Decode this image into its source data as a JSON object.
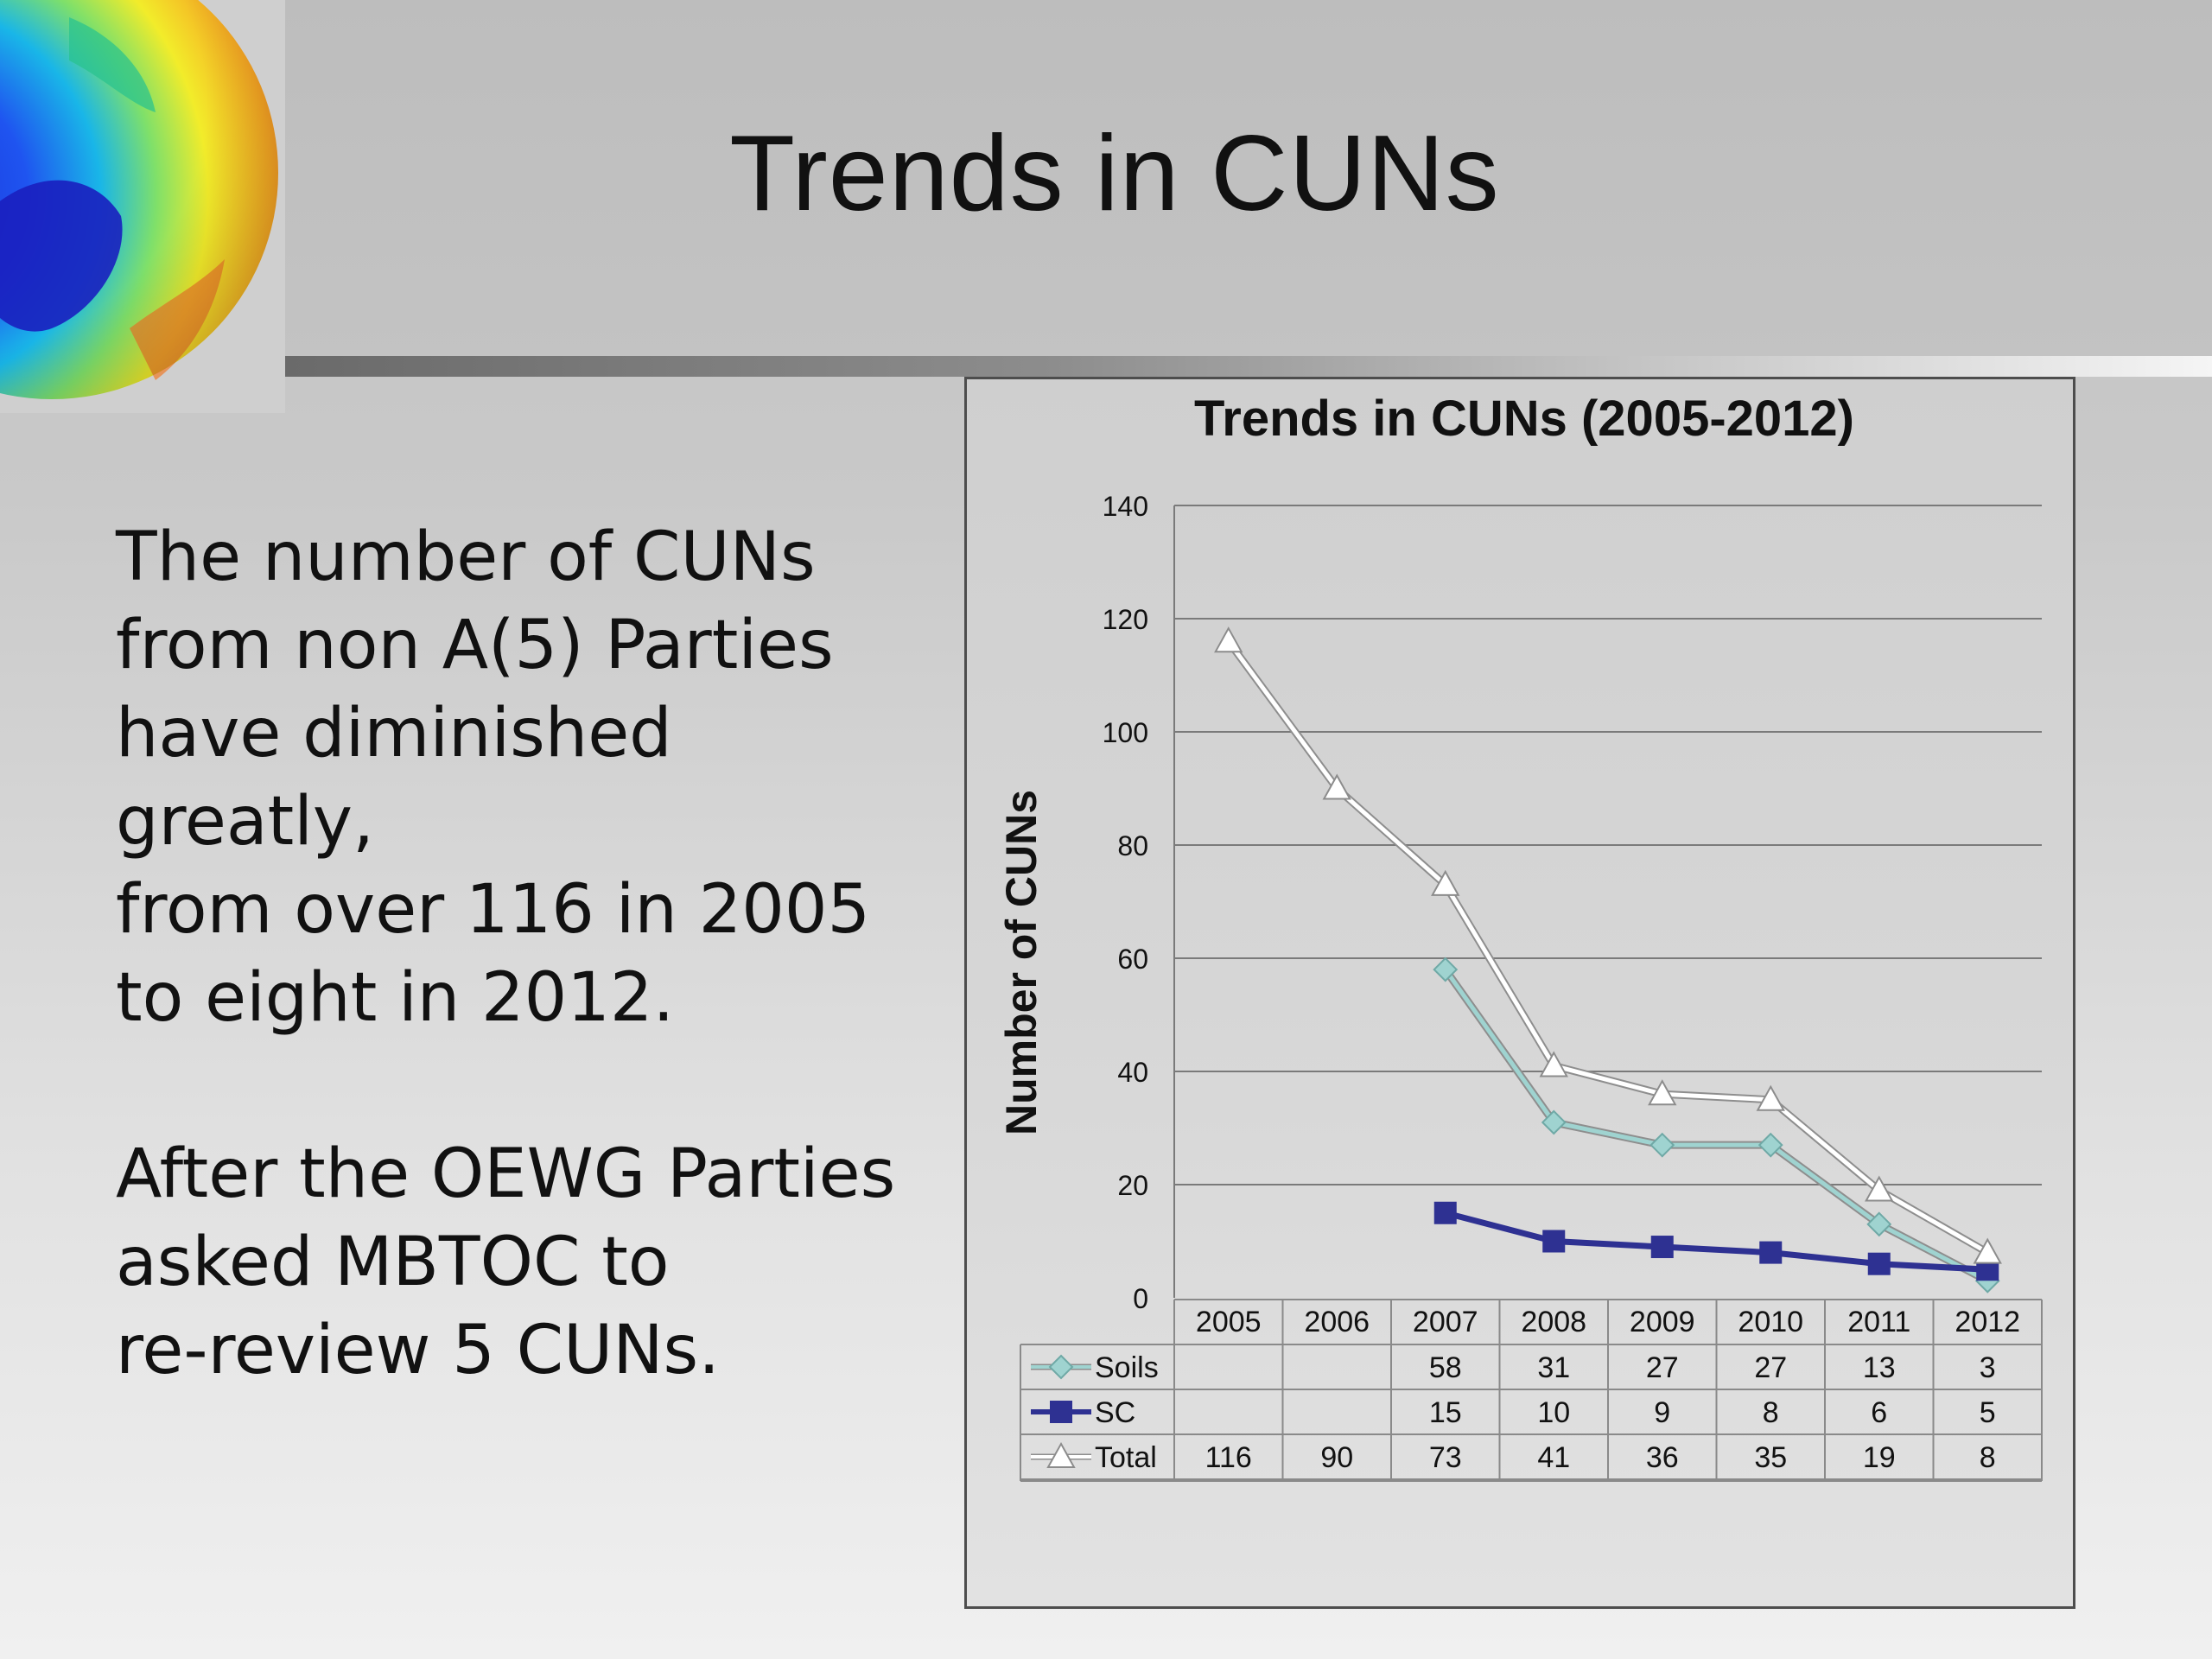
{
  "slide": {
    "title": "Trends in CUNs",
    "paragraphs": [
      [
        "The number of CUNs",
        "from non A(5) Parties",
        "have diminished greatly,",
        "from over 116 in 2005",
        "to eight in 2012."
      ],
      [
        "After the OEWG Parties",
        "asked MBTOC to",
        "re-review 5 CUNs."
      ]
    ]
  },
  "chart_data": {
    "type": "line",
    "title": "Trends in CUNs (2005-2012)",
    "ylabel": "Number of CUNs",
    "xlabel": "",
    "categories": [
      "2005",
      "2006",
      "2007",
      "2008",
      "2009",
      "2010",
      "2011",
      "2012"
    ],
    "ylim": [
      0,
      140
    ],
    "yticks": [
      0,
      20,
      40,
      60,
      80,
      100,
      120,
      140
    ],
    "grid": true,
    "legend": "data-table",
    "series": [
      {
        "name": "Soils",
        "values": [
          null,
          null,
          58,
          31,
          27,
          27,
          13,
          3
        ],
        "color": "#9fd3d0",
        "marker": "diamond"
      },
      {
        "name": "SC",
        "values": [
          null,
          null,
          15,
          10,
          9,
          8,
          6,
          5
        ],
        "color": "#2e3192",
        "marker": "square"
      },
      {
        "name": "Total",
        "values": [
          116,
          90,
          73,
          41,
          36,
          35,
          19,
          8
        ],
        "color": "#ffffff",
        "marker": "triangle"
      }
    ]
  },
  "colors": {
    "text": "#111111",
    "gridline": "#7a7a7a",
    "table_border": "#8a8a8a"
  }
}
